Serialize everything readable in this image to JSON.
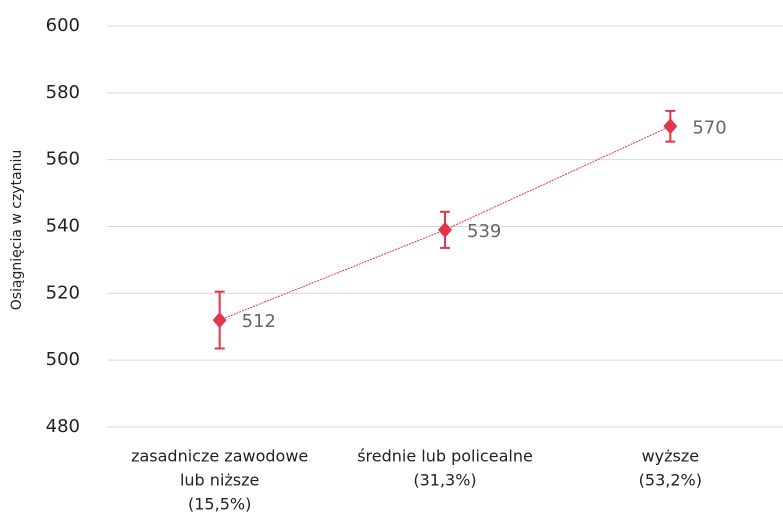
{
  "chart_data": {
    "type": "line",
    "ylabel": "Osiągnięcia w czytaniu",
    "categories": [
      [
        "zasadnicze zawodowe",
        "lub niższe",
        "(15,5%)"
      ],
      [
        "średnie lub policealne",
        "(31,3%)"
      ],
      [
        "wyższe",
        "(53,2%)"
      ]
    ],
    "series": [
      {
        "color": "#e2364d",
        "values": [
          512,
          539,
          570
        ],
        "errors": [
          8.5,
          5.4,
          4.6
        ]
      }
    ],
    "ylim": [
      480,
      600
    ],
    "yticks": [
      480,
      500,
      520,
      540,
      560,
      580,
      600
    ],
    "grid": true,
    "data_labels": true
  }
}
